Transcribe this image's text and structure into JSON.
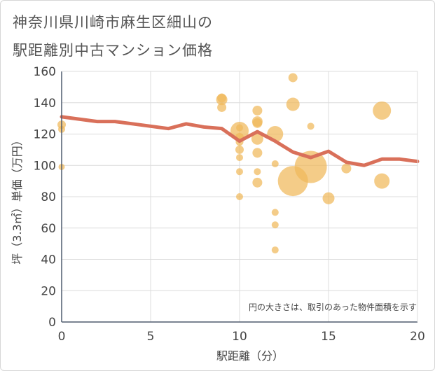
{
  "title_lines": [
    "神奈川県川崎市麻生区細山の",
    "駅距離別中古マンション価格"
  ],
  "chart_data": {
    "type": "scatter",
    "xlabel": "駅距離（分）",
    "ylabel": "坪（3.3㎡）単価（万円）",
    "xlim": [
      0,
      20
    ],
    "ylim": [
      0,
      160
    ],
    "x_ticks": [
      0,
      5,
      10,
      15,
      20
    ],
    "y_ticks": [
      0,
      20,
      40,
      60,
      80,
      100,
      120,
      140,
      160
    ],
    "grid": true,
    "note": "円の大きさは、取引のあった物件面積を示す",
    "colors": {
      "bubble": "#f0b95a",
      "line": "#d9705a",
      "grid": "#dcdcdc",
      "axis": "#4f5b6e"
    },
    "bubbles": [
      {
        "x": 0,
        "y": 126,
        "size": 1.2
      },
      {
        "x": 0,
        "y": 123,
        "size": 1.0
      },
      {
        "x": 0,
        "y": 99,
        "size": 0.9
      },
      {
        "x": 9,
        "y": 143,
        "size": 1.3
      },
      {
        "x": 9,
        "y": 142,
        "size": 1.6
      },
      {
        "x": 9,
        "y": 137,
        "size": 1.3
      },
      {
        "x": 10,
        "y": 124,
        "size": 1.0
      },
      {
        "x": 10,
        "y": 122,
        "size": 2.6
      },
      {
        "x": 10,
        "y": 118,
        "size": 1.2
      },
      {
        "x": 10,
        "y": 115,
        "size": 1.1
      },
      {
        "x": 10,
        "y": 110,
        "size": 1.2
      },
      {
        "x": 10,
        "y": 105,
        "size": 1.0
      },
      {
        "x": 10,
        "y": 96,
        "size": 1.0
      },
      {
        "x": 10,
        "y": 80,
        "size": 1.0
      },
      {
        "x": 11,
        "y": 135,
        "size": 1.4
      },
      {
        "x": 11,
        "y": 128,
        "size": 1.5
      },
      {
        "x": 11,
        "y": 127,
        "size": 1.4
      },
      {
        "x": 11,
        "y": 117,
        "size": 1.7
      },
      {
        "x": 11,
        "y": 108,
        "size": 1.4
      },
      {
        "x": 11,
        "y": 96,
        "size": 1.0
      },
      {
        "x": 11,
        "y": 89,
        "size": 1.4
      },
      {
        "x": 12,
        "y": 120,
        "size": 2.3
      },
      {
        "x": 12,
        "y": 101,
        "size": 1.0
      },
      {
        "x": 12,
        "y": 70,
        "size": 1.0
      },
      {
        "x": 12,
        "y": 62,
        "size": 1.0
      },
      {
        "x": 12,
        "y": 46,
        "size": 1.0
      },
      {
        "x": 13,
        "y": 156,
        "size": 1.3
      },
      {
        "x": 13,
        "y": 139,
        "size": 1.9
      },
      {
        "x": 13,
        "y": 90,
        "size": 4.3
      },
      {
        "x": 14,
        "y": 125,
        "size": 1.0
      },
      {
        "x": 14,
        "y": 99,
        "size": 4.6
      },
      {
        "x": 15,
        "y": 79,
        "size": 1.7
      },
      {
        "x": 16,
        "y": 98,
        "size": 1.4
      },
      {
        "x": 18,
        "y": 135,
        "size": 2.6
      },
      {
        "x": 18,
        "y": 90,
        "size": 2.2
      }
    ],
    "series": [
      {
        "x": [
          0,
          1,
          2,
          3,
          4,
          5,
          6,
          7,
          8,
          9,
          10,
          11,
          12,
          13,
          14,
          15,
          16,
          17,
          18,
          19,
          20
        ],
        "values": [
          131,
          129.5,
          128,
          128,
          126.5,
          125,
          123.5,
          126.5,
          124.5,
          123.5,
          115.5,
          121.5,
          115.5,
          108.5,
          105,
          109,
          102,
          100,
          104,
          104,
          102.5
        ]
      }
    ]
  }
}
